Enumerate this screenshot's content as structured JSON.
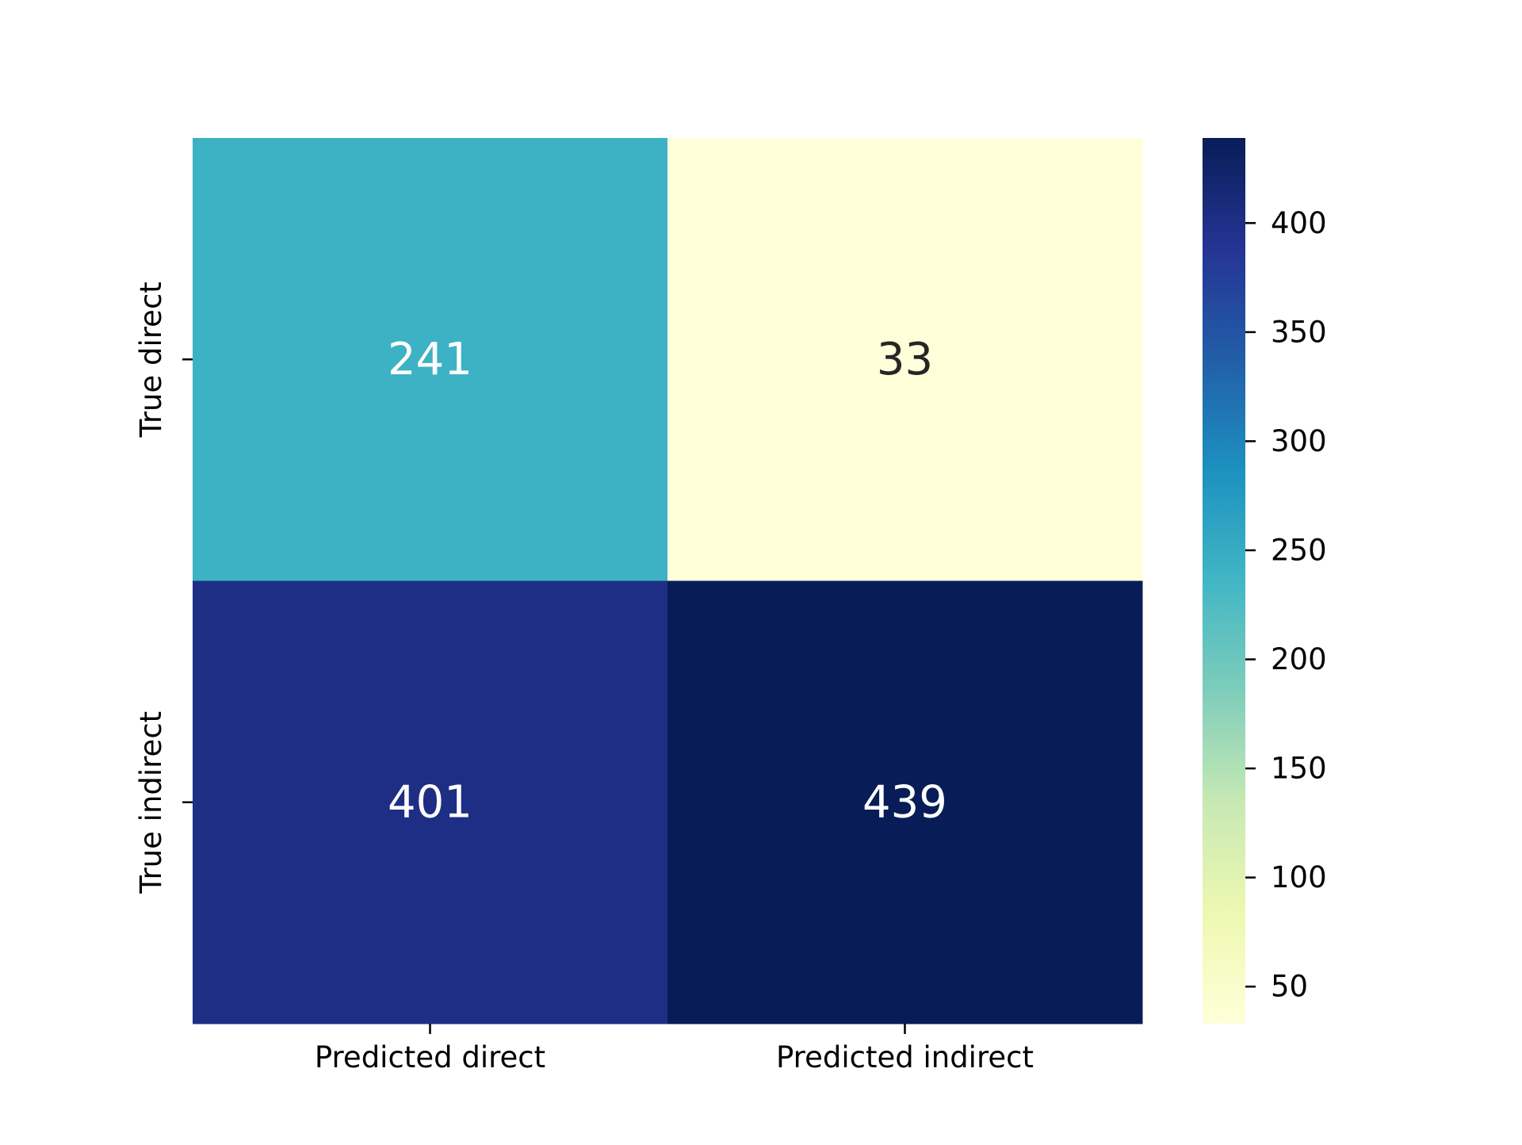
{
  "chart_data": {
    "type": "heatmap",
    "title": "",
    "xlabel": "",
    "ylabel": "",
    "x_categories": [
      "Predicted direct",
      "Predicted indirect"
    ],
    "y_categories": [
      "True direct",
      "True indirect"
    ],
    "values": [
      [
        241,
        33
      ],
      [
        401,
        439
      ]
    ],
    "colormap": "YlGnBu",
    "colorbar": {
      "range": [
        33,
        439
      ],
      "ticks": [
        50,
        100,
        150,
        200,
        250,
        300,
        350,
        400
      ]
    },
    "annotations": true,
    "grid": false
  },
  "colors": {
    "colormap_stops": [
      "#ffffd9",
      "#edf8b1",
      "#c7e9b4",
      "#7fcdbb",
      "#41b6c4",
      "#1d91c0",
      "#225ea8",
      "#253494",
      "#081d58"
    ],
    "text_dark": "#262626",
    "text_light": "#ffffff",
    "axis": "#000000"
  }
}
